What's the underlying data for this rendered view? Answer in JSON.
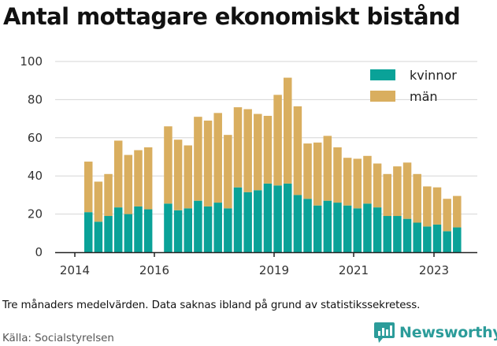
{
  "title": "Antal mottagare ekonomiskt bistånd",
  "caption": "Tre månaders medelvärden. Data saknas ibland på grund av statistikssekretess.",
  "source": "Källa: Socialstyrelsen",
  "brand": "Newsworthy",
  "colors": {
    "kvinnor": "#0aa298",
    "man": "#d9ae5f",
    "brand": "#2c9c9a"
  },
  "chart_data": {
    "type": "bar",
    "stacked": true,
    "y_ticks": [
      "0",
      "20",
      "40",
      "60",
      "80",
      "100"
    ],
    "x_ticks": [
      "2014",
      "2016",
      "2019",
      "2021",
      "2023"
    ],
    "ylim": [
      0,
      100
    ],
    "legend": "top-right",
    "grid": "horizontal",
    "series": [
      {
        "name": "kvinnor",
        "values": [
          21,
          16,
          19,
          23.5,
          20,
          24,
          22.5,
          null,
          25.5,
          22,
          23,
          27,
          24,
          26,
          23,
          34,
          31.5,
          32.5,
          36,
          35,
          36,
          30,
          28,
          24.5,
          27,
          26,
          24.5,
          23,
          25.5,
          23.5,
          19,
          19,
          17.5,
          15.5,
          13.5,
          14.5,
          11,
          13
        ]
      },
      {
        "name": "män",
        "values": [
          26.5,
          21,
          22,
          35,
          31,
          29.5,
          32.5,
          null,
          40.5,
          37,
          33,
          44,
          45,
          47,
          38.5,
          42,
          43.5,
          40,
          35.5,
          47.5,
          55.5,
          46.5,
          29,
          33,
          34,
          29,
          25,
          26,
          25,
          23,
          22,
          26,
          29.5,
          25.5,
          21,
          19.5,
          17,
          16.5
        ]
      }
    ]
  }
}
